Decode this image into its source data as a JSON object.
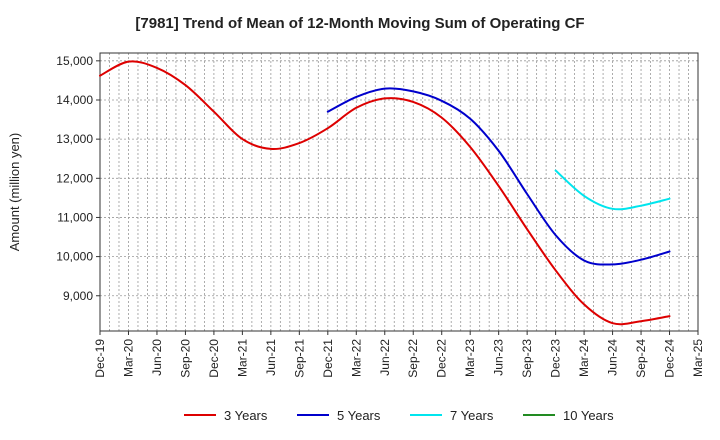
{
  "chart_data": {
    "type": "line",
    "title": "[7981]  Trend of Mean of 12-Month Moving Sum of Operating CF",
    "xlabel": "",
    "ylabel": "Amount (million yen)",
    "ylim": [
      8100,
      15200
    ],
    "yticks": [
      9000,
      10000,
      11000,
      12000,
      13000,
      14000,
      15000
    ],
    "ytick_labels": [
      "9,000",
      "10,000",
      "11,000",
      "12,000",
      "13,000",
      "14,000",
      "15,000"
    ],
    "categories": [
      "Dec-19",
      "Mar-20",
      "Jun-20",
      "Sep-20",
      "Dec-20",
      "Mar-21",
      "Jun-21",
      "Sep-21",
      "Dec-21",
      "Mar-22",
      "Jun-22",
      "Sep-22",
      "Dec-22",
      "Mar-23",
      "Jun-23",
      "Sep-23",
      "Dec-23",
      "Mar-24",
      "Jun-24",
      "Sep-24",
      "Dec-24",
      "Mar-25"
    ],
    "grid": true,
    "legend_position": "bottom",
    "series": [
      {
        "name": "3 Years",
        "color": "#dd0000",
        "points": [
          [
            0,
            14620
          ],
          [
            1,
            14980
          ],
          [
            2,
            14820
          ],
          [
            3,
            14380
          ],
          [
            4,
            13700
          ],
          [
            5,
            13000
          ],
          [
            6,
            12750
          ],
          [
            7,
            12900
          ],
          [
            8,
            13280
          ],
          [
            9,
            13800
          ],
          [
            10,
            14040
          ],
          [
            11,
            13950
          ],
          [
            12,
            13550
          ],
          [
            13,
            12800
          ],
          [
            14,
            11800
          ],
          [
            15,
            10700
          ],
          [
            16,
            9650
          ],
          [
            17,
            8780
          ],
          [
            18,
            8300
          ],
          [
            19,
            8350
          ],
          [
            20,
            8480
          ]
        ]
      },
      {
        "name": "5 Years",
        "color": "#0000cc",
        "points": [
          [
            8,
            13700
          ],
          [
            9,
            14080
          ],
          [
            10,
            14290
          ],
          [
            11,
            14220
          ],
          [
            12,
            13980
          ],
          [
            13,
            13520
          ],
          [
            14,
            12700
          ],
          [
            15,
            11600
          ],
          [
            16,
            10550
          ],
          [
            17,
            9900
          ],
          [
            18,
            9800
          ],
          [
            19,
            9920
          ],
          [
            20,
            10130
          ]
        ]
      },
      {
        "name": "7 Years",
        "color": "#00e5ee",
        "points": [
          [
            16,
            12200
          ],
          [
            17,
            11550
          ],
          [
            18,
            11220
          ],
          [
            19,
            11300
          ],
          [
            20,
            11480
          ]
        ]
      },
      {
        "name": "10 Years",
        "color": "#228b22",
        "points": []
      }
    ]
  }
}
